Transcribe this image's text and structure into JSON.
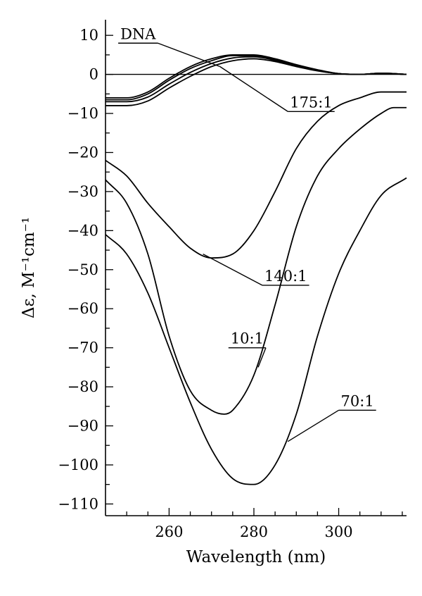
{
  "chart_data": {
    "type": "line",
    "title": "",
    "xlabel": "Wavelength (nm)",
    "ylabel": "Δε, M⁻¹cm⁻¹",
    "xlim": [
      245,
      316
    ],
    "ylim": [
      -113,
      14
    ],
    "xticks": [
      260,
      280,
      300
    ],
    "yticks": [
      10,
      0,
      -10,
      -20,
      -30,
      -40,
      -50,
      -60,
      -70,
      -80,
      -90,
      -100,
      -110
    ],
    "x_minor_step": 5,
    "y_minor_step": 5,
    "grid": false,
    "reference_line": 0,
    "series": [
      {
        "name": "DNA",
        "x": [
          245,
          250,
          255,
          260,
          265,
          270,
          275,
          280,
          285,
          290,
          295,
          300,
          305,
          310,
          316
        ],
        "y": [
          -6,
          -6,
          -4.5,
          -1,
          2,
          4,
          5,
          5,
          4,
          2.5,
          1.2,
          0.2,
          0,
          0.3,
          0
        ]
      },
      {
        "name": "",
        "x": [
          245,
          250,
          255,
          260,
          265,
          270,
          275,
          280,
          285,
          290,
          295,
          300,
          305,
          310,
          316
        ],
        "y": [
          -6.5,
          -6.5,
          -5,
          -1.5,
          1.5,
          3.5,
          4.8,
          4.8,
          3.8,
          2.3,
          1,
          0.2,
          0,
          0.3,
          0
        ]
      },
      {
        "name": "",
        "x": [
          245,
          250,
          255,
          260,
          265,
          270,
          275,
          280,
          285,
          290,
          295,
          300,
          305,
          310,
          316
        ],
        "y": [
          -7,
          -7,
          -5.8,
          -2.5,
          0.5,
          2.8,
          4.2,
          4.5,
          3.6,
          2.2,
          1,
          0.2,
          0,
          0.3,
          0
        ]
      },
      {
        "name": "175:1",
        "x": [
          245,
          250,
          255,
          260,
          265,
          270,
          275,
          280,
          285,
          290,
          295,
          300,
          305,
          310,
          316
        ],
        "y": [
          -8,
          -8,
          -6.8,
          -3.5,
          -0.5,
          2,
          3.5,
          4,
          3.3,
          2,
          0.9,
          0.2,
          0,
          0.3,
          0
        ]
      },
      {
        "name": "140:1",
        "x": [
          245,
          250,
          255,
          260,
          265,
          270,
          275,
          280,
          285,
          290,
          295,
          300,
          305,
          310,
          316
        ],
        "y": [
          -22,
          -26,
          -33,
          -39,
          -44.5,
          -47,
          -46,
          -40,
          -30,
          -19,
          -12,
          -8,
          -6,
          -4.5,
          -4.5
        ]
      },
      {
        "name": "10:1",
        "x": [
          245,
          250,
          255,
          260,
          265,
          270,
          273,
          275,
          280,
          285,
          290,
          295,
          300,
          305,
          310,
          313,
          316
        ],
        "y": [
          -27,
          -33,
          -46,
          -67,
          -81,
          -86,
          -87,
          -86,
          -77,
          -59,
          -39,
          -26,
          -19,
          -14,
          -10,
          -8.5,
          -8.5
        ]
      },
      {
        "name": "70:1",
        "x": [
          245,
          250,
          255,
          260,
          265,
          270,
          275,
          280,
          285,
          290,
          295,
          300,
          305,
          310,
          316
        ],
        "y": [
          -41,
          -46,
          -56,
          -70,
          -84,
          -96,
          -103.5,
          -105,
          -100,
          -87,
          -67,
          -51,
          -40,
          -31,
          -26.5
        ]
      }
    ],
    "annotations": [
      {
        "text": "DNA",
        "series": 0,
        "x": 272,
        "y": 2,
        "label_x": 248,
        "label_y": 8
      },
      {
        "text": "175:1",
        "series": 3,
        "x": 272,
        "y": 2,
        "label_x": 288,
        "label_y": -9.5
      },
      {
        "text": "140:1",
        "series": 4,
        "x": 268,
        "y": -46,
        "label_x": 282,
        "label_y": -54
      },
      {
        "text": "10:1",
        "series": 5,
        "x": 281,
        "y": -75,
        "label_x": 274,
        "label_y": -70
      },
      {
        "text": "70:1",
        "series": 6,
        "x": 288,
        "y": -94,
        "label_x": 300,
        "label_y": -86
      }
    ]
  }
}
